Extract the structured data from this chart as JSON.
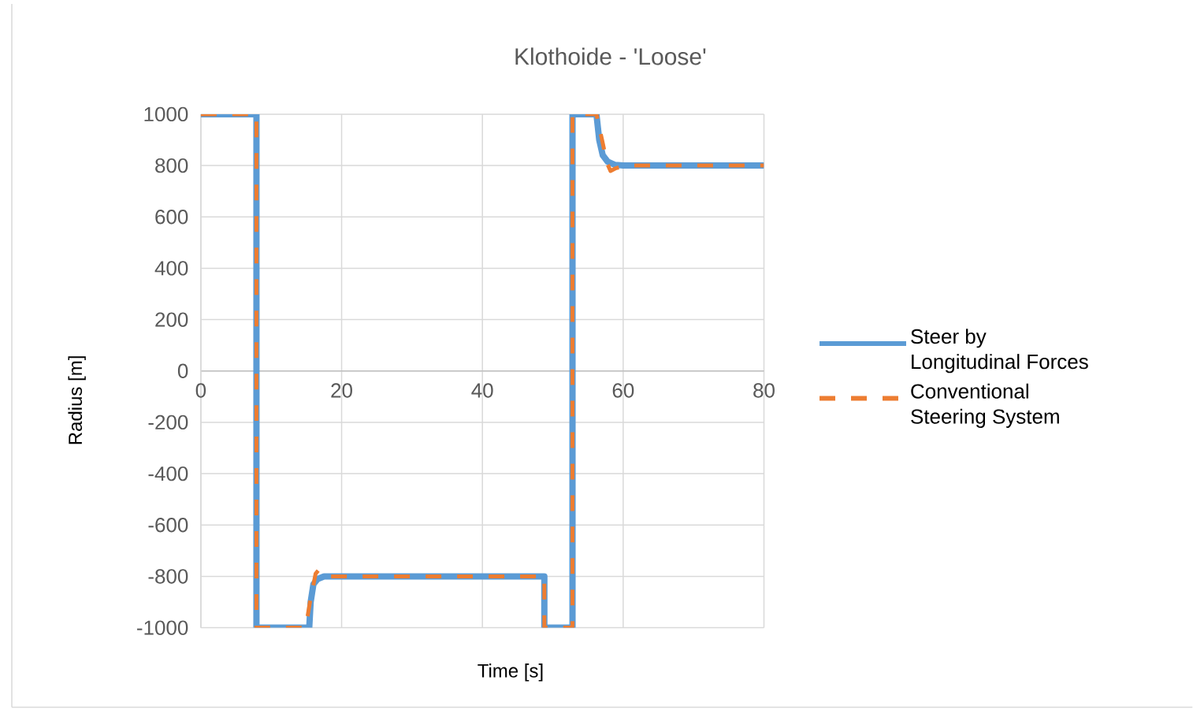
{
  "chart_data": {
    "type": "line",
    "title": "Klothoide - 'Loose'",
    "xlabel": "Time [s]",
    "ylabel": "Radius [m]",
    "xlim": [
      0,
      80
    ],
    "xticks": [
      0,
      20,
      40,
      60,
      80
    ],
    "ylim": [
      -1000,
      1000
    ],
    "yticks": [
      -1000,
      -800,
      -600,
      -400,
      -200,
      0,
      200,
      400,
      600,
      800,
      1000
    ],
    "grid": true,
    "legend": "right",
    "marker": "none",
    "series": [
      {
        "name": "Steer by Longitudinal Forces",
        "color": "#5b9bd5",
        "line_style": "solid",
        "x": [
          0,
          7.9,
          7.9,
          15.4,
          15.6,
          16.0,
          16.6,
          17.5,
          48.3,
          48.8,
          48.8,
          52.8,
          52.8,
          56.2,
          56.6,
          57.1,
          57.8,
          58.8,
          60,
          80
        ],
        "values": [
          1000,
          1000,
          -1000,
          -1000,
          -900,
          -830,
          -810,
          -800,
          -800,
          -800,
          -1000,
          -1000,
          1000,
          1000,
          900,
          840,
          815,
          803,
          800,
          800
        ]
      },
      {
        "name": "Conventional Steering System",
        "color": "#ed7d31",
        "line_style": "dashed",
        "x": [
          0,
          7.9,
          7.9,
          14.9,
          15.5,
          16.3,
          16.8,
          17.4,
          18.5,
          48.8,
          48.8,
          52.8,
          52.8,
          56.2,
          57.0,
          57.7,
          58.2,
          59.0,
          60.4,
          80
        ],
        "values": [
          1000,
          1000,
          -1000,
          -1000,
          -900,
          -790,
          -773,
          -790,
          -800,
          -800,
          -1000,
          -1000,
          1000,
          1000,
          900,
          810,
          779,
          790,
          800,
          800
        ]
      }
    ]
  }
}
